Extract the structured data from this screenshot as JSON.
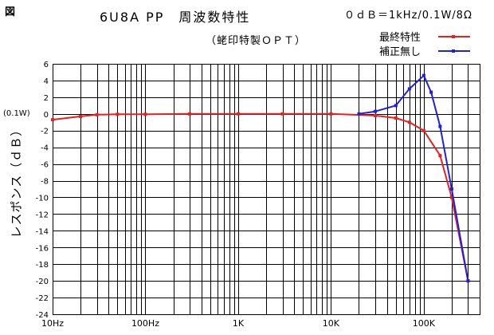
{
  "figure_label": "図",
  "chart_data": {
    "type": "line",
    "title": "6U8A PP　周波数特性",
    "subtitle": "（蛯印特製ＯＰＴ）",
    "reference_note": "０ｄＢ＝1kHz/0.1W/8Ω",
    "xlabel": "",
    "ylabel": "レスポンス（ｄＢ）",
    "y_reference_label": "(0.1W)",
    "x_scale": "log",
    "xlim": [
      10,
      400000
    ],
    "ylim": [
      -24,
      6
    ],
    "grid": true,
    "legend_position": "top-right",
    "x_tick_labels": [
      {
        "value": 10,
        "label": "10Hz"
      },
      {
        "value": 100,
        "label": "100Hz"
      },
      {
        "value": 1000,
        "label": "1K"
      },
      {
        "value": 10000,
        "label": "10K"
      },
      {
        "value": 100000,
        "label": "100K"
      }
    ],
    "y_ticks": [
      6,
      4,
      2,
      0,
      -2,
      -4,
      -6,
      -8,
      -10,
      -12,
      -14,
      -16,
      -18,
      -20,
      -22,
      -24
    ],
    "series": [
      {
        "name": "最終特性",
        "color": "#e82020",
        "marker": "square",
        "points": [
          [
            10,
            -0.7
          ],
          [
            20,
            -0.3
          ],
          [
            30,
            -0.1
          ],
          [
            50,
            -0.05
          ],
          [
            100,
            -0.05
          ],
          [
            300,
            0
          ],
          [
            1000,
            0
          ],
          [
            3000,
            0
          ],
          [
            10000,
            0
          ],
          [
            30000,
            -0.2
          ],
          [
            50000,
            -0.5
          ],
          [
            70000,
            -1.0
          ],
          [
            100000,
            -2.0
          ],
          [
            150000,
            -5.0
          ],
          [
            200000,
            -10.0
          ],
          [
            300000,
            -20.0
          ]
        ]
      },
      {
        "name": "補正無し",
        "color": "#1f1fe0",
        "marker": "square",
        "points": [
          [
            20000,
            0
          ],
          [
            30000,
            0.3
          ],
          [
            50000,
            1.0
          ],
          [
            70000,
            3.0
          ],
          [
            100000,
            4.6
          ],
          [
            120000,
            2.6
          ],
          [
            150000,
            -1.5
          ],
          [
            200000,
            -9.0
          ],
          [
            300000,
            -20.0
          ]
        ]
      }
    ]
  }
}
